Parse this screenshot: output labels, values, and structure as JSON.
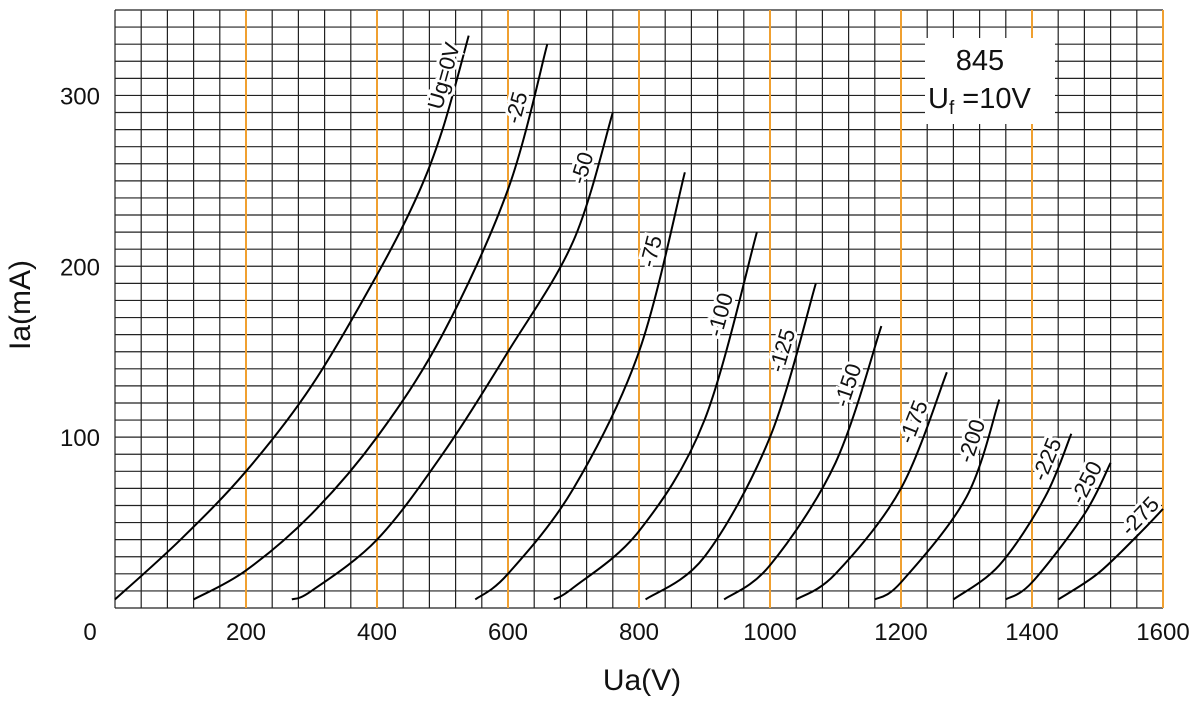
{
  "chart_data": {
    "type": "line",
    "title": "845",
    "subtitle_main": "U",
    "subtitle_sub": "f",
    "subtitle_rest": " =10V",
    "xlabel": "Ua(V)",
    "ylabel": "Ia(mA)",
    "xlim": [
      0,
      1600
    ],
    "ylim": [
      0,
      350
    ],
    "x_ticks": [
      "0",
      "200",
      "400",
      "600",
      "800",
      "1000",
      "1200",
      "1400",
      "1600"
    ],
    "y_ticks": [
      "100",
      "200",
      "300"
    ],
    "grid": true,
    "accent_color": "#f0a030",
    "series": [
      {
        "name": "Ug=0V",
        "points": [
          [
            0,
            5
          ],
          [
            100,
            40
          ],
          [
            200,
            80
          ],
          [
            300,
            130
          ],
          [
            400,
            195
          ],
          [
            460,
            240
          ],
          [
            500,
            280
          ],
          [
            540,
            335
          ]
        ]
      },
      {
        "name": "-25",
        "points": [
          [
            120,
            5
          ],
          [
            200,
            22
          ],
          [
            300,
            55
          ],
          [
            400,
            100
          ],
          [
            500,
            160
          ],
          [
            600,
            245
          ],
          [
            660,
            330
          ]
        ]
      },
      {
        "name": "-50",
        "points": [
          [
            270,
            5
          ],
          [
            300,
            10
          ],
          [
            400,
            40
          ],
          [
            500,
            90
          ],
          [
            600,
            150
          ],
          [
            700,
            215
          ],
          [
            760,
            290
          ]
        ]
      },
      {
        "name": "-75",
        "points": [
          [
            550,
            5
          ],
          [
            600,
            20
          ],
          [
            700,
            70
          ],
          [
            800,
            150
          ],
          [
            870,
            255
          ]
        ]
      },
      {
        "name": "-100",
        "points": [
          [
            670,
            5
          ],
          [
            700,
            12
          ],
          [
            800,
            45
          ],
          [
            900,
            110
          ],
          [
            980,
            220
          ]
        ]
      },
      {
        "name": "-125",
        "points": [
          [
            810,
            5
          ],
          [
            900,
            30
          ],
          [
            1000,
            100
          ],
          [
            1070,
            190
          ]
        ]
      },
      {
        "name": "-150",
        "points": [
          [
            930,
            5
          ],
          [
            1000,
            25
          ],
          [
            1100,
            85
          ],
          [
            1170,
            165
          ]
        ]
      },
      {
        "name": "-175",
        "points": [
          [
            1040,
            5
          ],
          [
            1100,
            20
          ],
          [
            1200,
            70
          ],
          [
            1270,
            138
          ]
        ]
      },
      {
        "name": "-200",
        "points": [
          [
            1160,
            5
          ],
          [
            1200,
            15
          ],
          [
            1300,
            65
          ],
          [
            1350,
            122
          ]
        ]
      },
      {
        "name": "-225",
        "points": [
          [
            1280,
            5
          ],
          [
            1350,
            25
          ],
          [
            1420,
            65
          ],
          [
            1460,
            102
          ]
        ]
      },
      {
        "name": "-250",
        "points": [
          [
            1360,
            5
          ],
          [
            1400,
            15
          ],
          [
            1480,
            55
          ],
          [
            1520,
            85
          ]
        ]
      },
      {
        "name": "-275",
        "points": [
          [
            1440,
            5
          ],
          [
            1500,
            20
          ],
          [
            1560,
            42
          ],
          [
            1600,
            58
          ]
        ]
      }
    ]
  }
}
